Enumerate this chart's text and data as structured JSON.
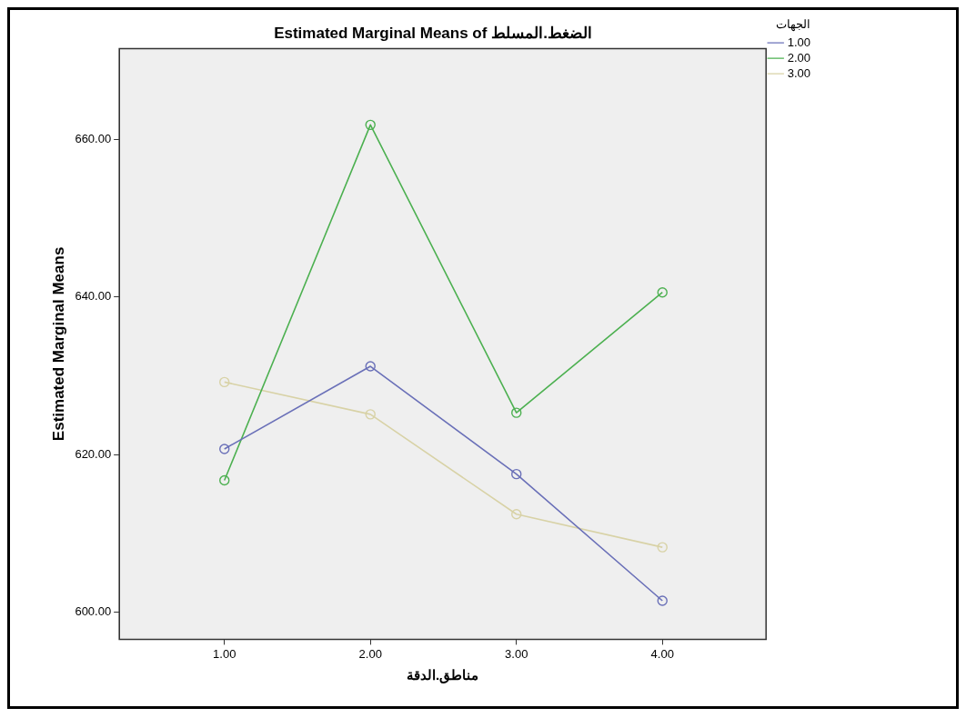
{
  "chart_data": {
    "type": "line",
    "title": "Estimated Marginal Means of الضغط.المسلط",
    "xlabel": "مناطق.الدقة",
    "ylabel": "Estimated Marginal Means",
    "legend_title": "الجهات",
    "x": [
      1,
      2,
      3,
      4
    ],
    "series": [
      {
        "name": "1.00",
        "color": "#6a70b8",
        "values": [
          620.7,
          631.2,
          617.5,
          601.4
        ]
      },
      {
        "name": "2.00",
        "color": "#4cb050",
        "values": [
          616.7,
          661.9,
          625.3,
          640.6
        ]
      },
      {
        "name": "3.00",
        "color": "#d8d2a6",
        "values": [
          629.2,
          625.1,
          612.4,
          608.2
        ]
      }
    ],
    "xlim": [
      0.28,
      4.71
    ],
    "xticks": [
      {
        "value": 1,
        "label": "1.00"
      },
      {
        "value": 2,
        "label": "2.00"
      },
      {
        "value": 3,
        "label": "3.00"
      },
      {
        "value": 4,
        "label": "4.00"
      }
    ],
    "ylim": [
      596.5,
      671.6
    ],
    "yticks": [
      {
        "value": 600,
        "label": "600.00"
      },
      {
        "value": 620,
        "label": "620.00"
      },
      {
        "value": 640,
        "label": "640.00"
      },
      {
        "value": 660,
        "label": "660.00"
      }
    ],
    "grid": false,
    "legend": "top right",
    "marker": "circle",
    "line_style": "solid"
  }
}
